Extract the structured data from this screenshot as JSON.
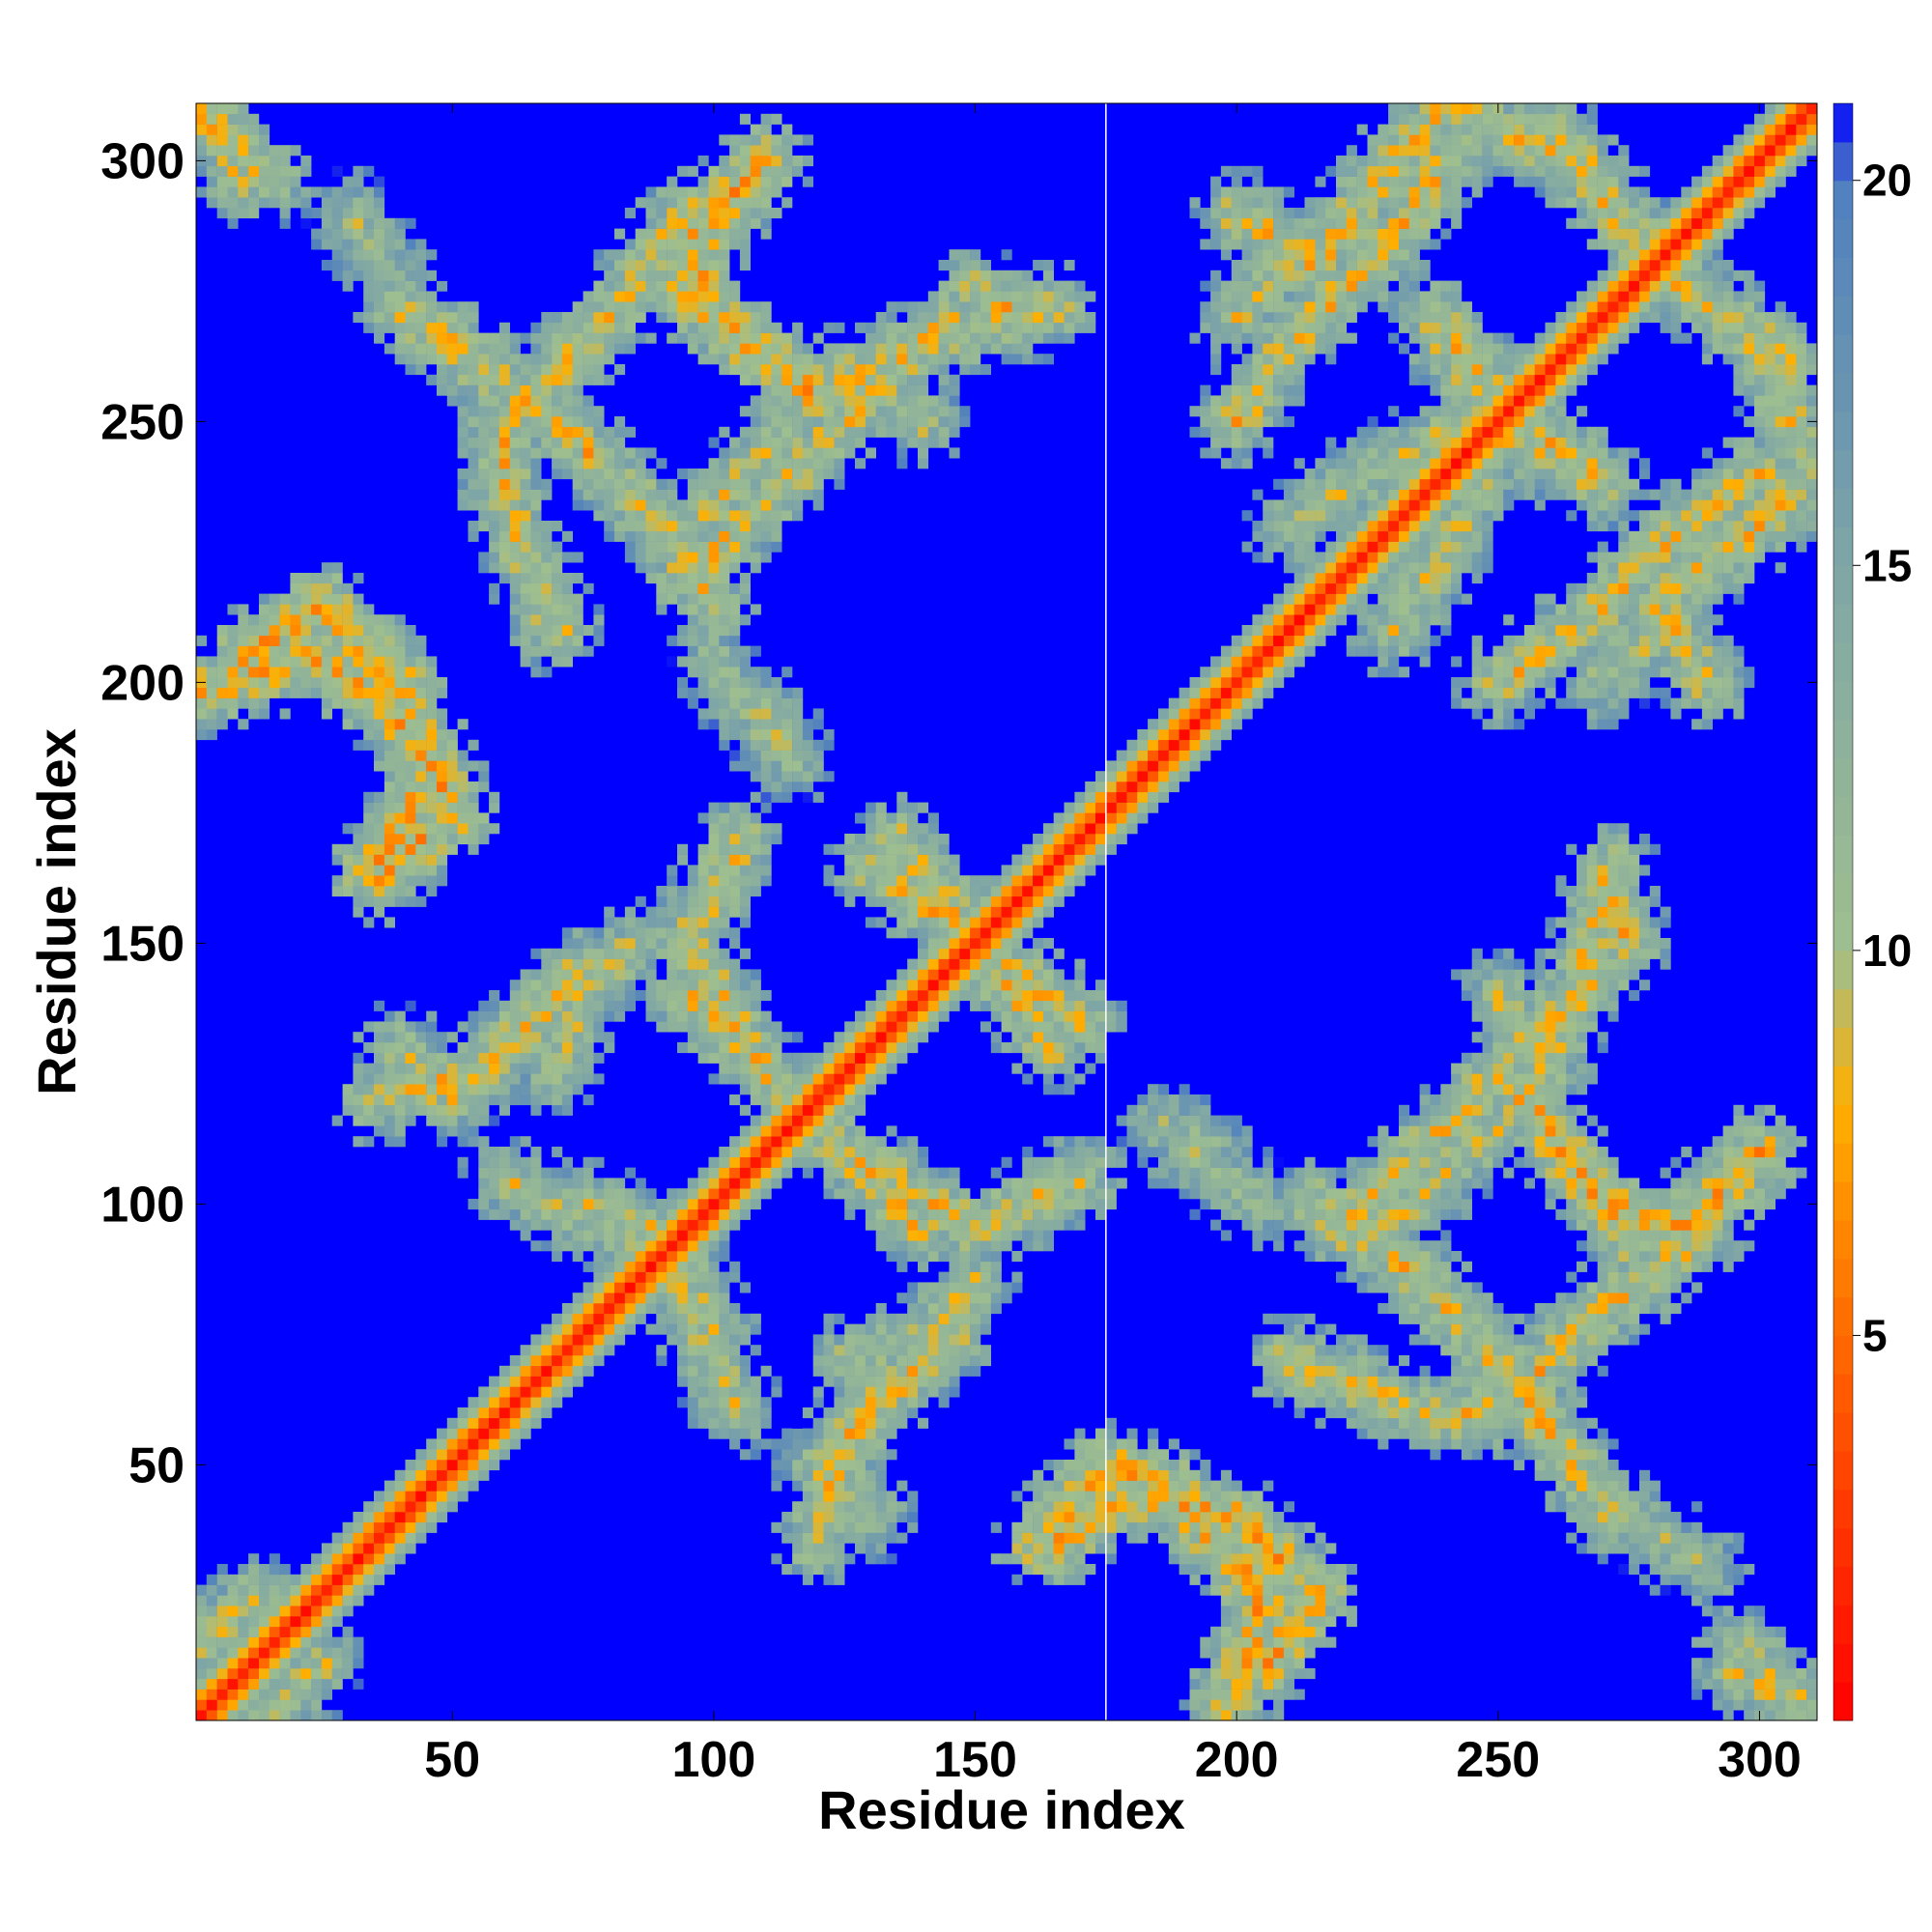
{
  "chart_data": {
    "type": "heatmap",
    "title": "",
    "xlabel": "Residue index",
    "ylabel": "Residue index",
    "xlim": [
      1,
      311
    ],
    "ylim": [
      1,
      311
    ],
    "x_ticks": [
      50,
      100,
      150,
      200,
      250,
      300
    ],
    "y_ticks": [
      50,
      100,
      150,
      200,
      250,
      300
    ],
    "colorbar": {
      "range": [
        0,
        21
      ],
      "ticks": [
        5,
        10,
        15,
        20
      ],
      "colors": [
        "#ff0000",
        "#ff7f00",
        "#ffb000",
        "#9fbf8f",
        "#7fa6a6",
        "#4f7fbf",
        "#0000ff"
      ],
      "stops": [
        0,
        6,
        8,
        10,
        15,
        20,
        21
      ]
    },
    "map": {
      "background_value": 21,
      "diagonal_value": 1,
      "separator_residue": 175,
      "bands": [
        {
          "path": [
            [
              1,
              310
            ],
            [
              15,
              296
            ]
          ],
          "value": 9
        },
        {
          "path": [
            [
              40,
              272
            ],
            [
              70,
              250
            ],
            [
              90,
              230
            ],
            [
              100,
              215
            ]
          ],
          "value": 9
        },
        {
          "path": [
            [
              110,
              300
            ],
            [
              100,
              288
            ],
            [
              93,
              275
            ],
            [
              120,
              255
            ],
            [
              140,
              265
            ],
            [
              165,
              272
            ]
          ],
          "value": 9
        },
        {
          "path": [
            [
              95,
              228
            ],
            [
              110,
              245
            ],
            [
              125,
              260
            ],
            [
              140,
              250
            ]
          ],
          "value": 10
        },
        {
          "path": [
            [
              1,
              198
            ],
            [
              25,
              205
            ],
            [
              45,
              188
            ],
            [
              50,
              175
            ],
            [
              35,
              162
            ]
          ],
          "value": 8
        },
        {
          "path": [
            [
              110,
              195
            ],
            [
              115,
              185
            ]
          ],
          "value": 11
        },
        {
          "path": [
            [
              35,
              120
            ],
            [
              55,
              125
            ],
            [
              75,
              145
            ]
          ],
          "value": 9
        },
        {
          "path": [
            [
              60,
              105
            ],
            [
              80,
              95
            ],
            [
              95,
              90
            ],
            [
              100,
              75
            ]
          ],
          "value": 10
        },
        {
          "path": [
            [
              95,
              140
            ],
            [
              110,
              125
            ],
            [
              125,
              110
            ],
            [
              150,
              95
            ],
            [
              170,
              105
            ]
          ],
          "value": 9
        },
        {
          "path": [
            [
              125,
              70
            ],
            [
              140,
              75
            ],
            [
              150,
              85
            ]
          ],
          "value": 10
        },
        {
          "path": [
            [
              120,
              50
            ],
            [
              130,
              40
            ]
          ],
          "value": 10
        },
        {
          "path": [
            [
              135,
              170
            ],
            [
              150,
              150
            ],
            [
              165,
              130
            ]
          ],
          "value": 9
        },
        {
          "path": [
            [
              1,
              15
            ],
            [
              12,
              25
            ]
          ],
          "value": 10
        },
        {
          "path": [
            [
              165,
              35
            ],
            [
              180,
              45
            ],
            [
              200,
              40
            ],
            [
              215,
              25
            ],
            [
              205,
              10
            ]
          ],
          "value": 8
        },
        {
          "path": [
            [
              200,
              290
            ],
            [
              215,
              280
            ],
            [
              230,
              300
            ],
            [
              240,
              310
            ]
          ],
          "value": 9
        },
        {
          "path": [
            [
              200,
              270
            ],
            [
              215,
              285
            ]
          ],
          "value": 10
        },
        {
          "path": [
            [
              240,
              310
            ],
            [
              265,
              300
            ],
            [
              280,
              280
            ],
            [
              305,
              262
            ]
          ],
          "value": 9
        },
        {
          "path": [
            [
              210,
              230
            ],
            [
              225,
              240
            ],
            [
              245,
              250
            ],
            [
              265,
              240
            ]
          ],
          "value": 10
        },
        {
          "path": [
            [
              240,
              265
            ],
            [
              255,
              250
            ],
            [
              270,
              238
            ]
          ],
          "value": 9
        },
        {
          "path": [
            [
              250,
              200
            ],
            [
              265,
              210
            ],
            [
              285,
              230
            ],
            [
              300,
              240
            ]
          ],
          "value": 9
        },
        {
          "path": [
            [
              270,
              160
            ],
            [
              275,
              150
            ]
          ],
          "value": 9
        },
        {
          "path": [
            [
              255,
              120
            ],
            [
              270,
              100
            ],
            [
              285,
              95
            ],
            [
              300,
              110
            ]
          ],
          "value": 8
        },
        {
          "path": [
            [
              210,
              70
            ],
            [
              235,
              60
            ],
            [
              250,
              60
            ],
            [
              270,
              80
            ],
            [
              290,
              95
            ]
          ],
          "value": 9
        },
        {
          "path": [
            [
              220,
              95
            ],
            [
              235,
              110
            ],
            [
              255,
              130
            ],
            [
              270,
              145
            ]
          ],
          "value": 9
        },
        {
          "path": [
            [
              190,
              110
            ],
            [
              205,
              100
            ]
          ],
          "value": 11
        },
        {
          "path": [
            [
              295,
              10
            ],
            [
              305,
              5
            ]
          ],
          "value": 10
        },
        {
          "path": [
            [
              275,
              40
            ],
            [
              290,
              30
            ]
          ],
          "value": 11
        }
      ]
    }
  }
}
